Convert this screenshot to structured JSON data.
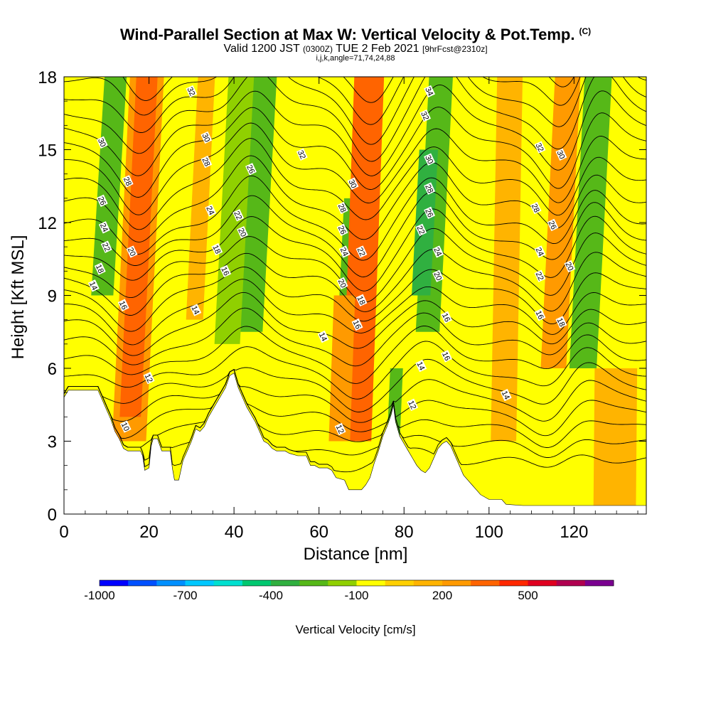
{
  "titles": {
    "main": "Wind-Parallel Section at Max W: Vertical Velocity & Pot.Temp.",
    "main_note": "(C)",
    "valid_prefix": "Valid 1200 JST",
    "valid_utc": "(0300Z)",
    "valid_date": "TUE 2 Feb 2021",
    "forecast": "[9hrFcst@2310z]",
    "params": "i,j,k,angle=71,74,24,88"
  },
  "chart_data": {
    "type": "heatmap",
    "title": "Wind-Parallel Section at Max W: Vertical Velocity & Pot.Temp.",
    "xlabel": "Distance [nm]",
    "ylabel": "Height [Kft MSL]",
    "xlim": [
      0,
      137
    ],
    "ylim": [
      0,
      18
    ],
    "x_ticks": [
      0,
      20,
      40,
      60,
      80,
      100,
      120
    ],
    "y_ticks": [
      0,
      3,
      6,
      9,
      12,
      15,
      18
    ],
    "colorbar": {
      "label": "Vertical Velocity [cm/s]",
      "tick_labels": [
        "-1000",
        "-700",
        "-400",
        "-100",
        "200",
        "500"
      ],
      "tick_values": [
        -1000,
        -700,
        -400,
        -100,
        200,
        500
      ],
      "min": -1000,
      "max": 800,
      "step": 100,
      "colors": [
        "#0000ff",
        "#0050ff",
        "#0090ff",
        "#00c8ff",
        "#00e0d0",
        "#00c870",
        "#30b040",
        "#56b818",
        "#90d000",
        "#ffff00",
        "#ffd000",
        "#ffb400",
        "#ff9a00",
        "#ff6400",
        "#ff2800",
        "#e00020",
        "#b00050",
        "#7a0090"
      ]
    },
    "velocity_bands": [
      {
        "x": 2,
        "w": 3.5,
        "tilt": 0.25,
        "top": 18,
        "bottom": 5.5,
        "value": -100
      },
      {
        "x": 9,
        "w": 2.6,
        "tilt": 0.35,
        "top": 18,
        "bottom": 9,
        "value": -250
      },
      {
        "x": 17,
        "w": 4.0,
        "tilt": 0.28,
        "top": 18,
        "bottom": 3,
        "value": 200
      },
      {
        "x": 17,
        "w": 2.5,
        "tilt": 0.28,
        "top": 18,
        "bottom": 4,
        "value": 300
      },
      {
        "x": 31,
        "w": 2.0,
        "tilt": 0.28,
        "top": 18,
        "bottom": 8,
        "value": 150
      },
      {
        "x": 44,
        "w": 3.2,
        "tilt": 0.32,
        "top": 18,
        "bottom": 7.5,
        "value": -300
      },
      {
        "x": 39,
        "w": 3.0,
        "tilt": 0.3,
        "top": 18,
        "bottom": 7.0,
        "value": -150
      },
      {
        "x": 67,
        "w": 2.2,
        "tilt": 0.28,
        "top": 13,
        "bottom": 8,
        "value": -250
      },
      {
        "x": 70,
        "w": 3.5,
        "tilt": 0.2,
        "top": 18,
        "bottom": 3,
        "value": 300
      },
      {
        "x": 66,
        "w": 2.5,
        "tilt": 0.2,
        "top": 9,
        "bottom": 3,
        "value": 200
      },
      {
        "x": 86,
        "w": 2.8,
        "tilt": 0.3,
        "top": 18,
        "bottom": 7.5,
        "value": -250
      },
      {
        "x": 84,
        "w": 2.2,
        "tilt": 0.3,
        "top": 15,
        "bottom": 9,
        "value": -400
      },
      {
        "x": 79,
        "w": 1.5,
        "tilt": 0.25,
        "top": 6,
        "bottom": 3,
        "value": -300
      },
      {
        "x": 116,
        "w": 3.0,
        "tilt": 0.28,
        "top": 18,
        "bottom": 6,
        "value": 250
      },
      {
        "x": 123,
        "w": 3.2,
        "tilt": 0.3,
        "top": 18,
        "bottom": 6,
        "value": -250
      },
      {
        "x": 104,
        "w": 3.0,
        "tilt": 0.1,
        "top": 18,
        "bottom": 3,
        "value": 100
      },
      {
        "x": 130,
        "w": 5.0,
        "tilt": 0.05,
        "top": 6,
        "bottom": 0,
        "value": 150
      }
    ],
    "theta_contours": {
      "interval": 1,
      "min": 10,
      "max": 35,
      "labeled_values": [
        10,
        12,
        14,
        16,
        18,
        20,
        22,
        24,
        26,
        28,
        30,
        32,
        34
      ]
    },
    "theta_labels": [
      {
        "x": 14.5,
        "y": 3.6,
        "text": "10"
      },
      {
        "x": 20,
        "y": 5.6,
        "text": "12"
      },
      {
        "x": 65,
        "y": 3.5,
        "text": "12"
      },
      {
        "x": 82,
        "y": 4.5,
        "text": "12"
      },
      {
        "x": 31,
        "y": 8.4,
        "text": "14"
      },
      {
        "x": 61,
        "y": 7.3,
        "text": "14"
      },
      {
        "x": 84,
        "y": 6.1,
        "text": "14"
      },
      {
        "x": 104,
        "y": 4.9,
        "text": "14"
      },
      {
        "x": 7,
        "y": 9.4,
        "text": "14"
      },
      {
        "x": 14,
        "y": 8.6,
        "text": "16"
      },
      {
        "x": 38,
        "y": 10.0,
        "text": "16"
      },
      {
        "x": 69,
        "y": 7.8,
        "text": "16"
      },
      {
        "x": 90,
        "y": 6.5,
        "text": "16"
      },
      {
        "x": 90,
        "y": 8.1,
        "text": "16"
      },
      {
        "x": 112,
        "y": 8.2,
        "text": "16"
      },
      {
        "x": 117,
        "y": 7.9,
        "text": "18"
      },
      {
        "x": 36,
        "y": 10.9,
        "text": "18"
      },
      {
        "x": 70,
        "y": 8.8,
        "text": "18"
      },
      {
        "x": 8.5,
        "y": 10.1,
        "text": "18"
      },
      {
        "x": 16,
        "y": 10.8,
        "text": "20"
      },
      {
        "x": 42,
        "y": 11.6,
        "text": "20"
      },
      {
        "x": 65.5,
        "y": 9.5,
        "text": "20"
      },
      {
        "x": 88,
        "y": 9.8,
        "text": "20"
      },
      {
        "x": 119,
        "y": 10.2,
        "text": "20"
      },
      {
        "x": 10,
        "y": 11.0,
        "text": "22"
      },
      {
        "x": 41,
        "y": 12.3,
        "text": "22"
      },
      {
        "x": 70,
        "y": 10.8,
        "text": "22"
      },
      {
        "x": 84,
        "y": 11.7,
        "text": "22"
      },
      {
        "x": 112,
        "y": 9.8,
        "text": "22"
      },
      {
        "x": 9.5,
        "y": 11.8,
        "text": "24"
      },
      {
        "x": 34.5,
        "y": 12.5,
        "text": "24"
      },
      {
        "x": 66,
        "y": 10.8,
        "text": "24"
      },
      {
        "x": 88,
        "y": 10.8,
        "text": "24"
      },
      {
        "x": 112,
        "y": 10.8,
        "text": "24"
      },
      {
        "x": 9,
        "y": 12.9,
        "text": "26"
      },
      {
        "x": 44,
        "y": 14.2,
        "text": "26"
      },
      {
        "x": 65.5,
        "y": 11.7,
        "text": "26"
      },
      {
        "x": 86,
        "y": 12.4,
        "text": "26"
      },
      {
        "x": 115,
        "y": 11.9,
        "text": "26"
      },
      {
        "x": 15,
        "y": 13.7,
        "text": "28"
      },
      {
        "x": 33.5,
        "y": 14.5,
        "text": "28"
      },
      {
        "x": 65.5,
        "y": 12.6,
        "text": "28"
      },
      {
        "x": 86,
        "y": 13.4,
        "text": "28"
      },
      {
        "x": 111,
        "y": 12.6,
        "text": "28"
      },
      {
        "x": 9,
        "y": 15.3,
        "text": "30"
      },
      {
        "x": 33.5,
        "y": 15.5,
        "text": "30"
      },
      {
        "x": 68,
        "y": 13.6,
        "text": "30"
      },
      {
        "x": 86,
        "y": 14.6,
        "text": "30"
      },
      {
        "x": 117,
        "y": 14.8,
        "text": "30"
      },
      {
        "x": 30,
        "y": 17.4,
        "text": "32"
      },
      {
        "x": 56,
        "y": 14.8,
        "text": "32"
      },
      {
        "x": 85,
        "y": 16.4,
        "text": "32"
      },
      {
        "x": 112,
        "y": 15.1,
        "text": "32"
      },
      {
        "x": 86,
        "y": 17.4,
        "text": "34"
      }
    ],
    "terrain": [
      [
        0,
        4.8
      ],
      [
        1,
        5.1
      ],
      [
        4,
        5.1
      ],
      [
        8,
        5.1
      ],
      [
        9,
        4.7
      ],
      [
        10,
        4.3
      ],
      [
        11,
        3.9
      ],
      [
        12,
        3.4
      ],
      [
        13,
        3.1
      ],
      [
        14,
        2.7
      ],
      [
        15,
        2.6
      ],
      [
        18,
        2.6
      ],
      [
        18.5,
        2.4
      ],
      [
        19,
        1.8
      ],
      [
        20,
        1.9
      ],
      [
        20.5,
        2.8
      ],
      [
        21,
        3.1
      ],
      [
        22,
        3.1
      ],
      [
        23,
        2.6
      ],
      [
        24,
        2.6
      ],
      [
        25,
        2.6
      ],
      [
        25.5,
        1.9
      ],
      [
        26,
        1.4
      ],
      [
        27,
        1.4
      ],
      [
        28,
        2.2
      ],
      [
        29,
        2.6
      ],
      [
        30,
        3.0
      ],
      [
        31,
        3.5
      ],
      [
        32,
        3.4
      ],
      [
        33,
        3.6
      ],
      [
        34,
        4.0
      ],
      [
        35,
        4.3
      ],
      [
        36,
        4.6
      ],
      [
        37,
        4.9
      ],
      [
        38,
        5.2
      ],
      [
        39,
        5.7
      ],
      [
        40,
        5.8
      ],
      [
        41,
        5.2
      ],
      [
        42,
        4.8
      ],
      [
        43,
        4.4
      ],
      [
        44,
        4.1
      ],
      [
        45,
        3.8
      ],
      [
        46,
        3.4
      ],
      [
        47,
        3.0
      ],
      [
        48,
        2.9
      ],
      [
        49,
        2.7
      ],
      [
        50,
        2.6
      ],
      [
        52,
        2.6
      ],
      [
        53,
        2.5
      ],
      [
        55,
        2.4
      ],
      [
        57,
        2.4
      ],
      [
        58,
        2.0
      ],
      [
        59,
        2.0
      ],
      [
        60,
        1.9
      ],
      [
        62,
        1.9
      ],
      [
        63,
        1.8
      ],
      [
        64,
        1.5
      ],
      [
        66,
        1.4
      ],
      [
        67,
        1.0
      ],
      [
        70,
        1.0
      ],
      [
        71,
        1.2
      ],
      [
        72,
        1.5
      ],
      [
        73,
        2.1
      ],
      [
        74,
        2.6
      ],
      [
        75,
        3.2
      ],
      [
        76,
        3.6
      ],
      [
        77,
        4.1
      ],
      [
        77.5,
        4.5
      ],
      [
        78,
        3.8
      ],
      [
        79,
        3.2
      ],
      [
        80,
        2.9
      ],
      [
        81,
        2.6
      ],
      [
        82,
        2.3
      ],
      [
        83,
        2.0
      ],
      [
        84,
        1.8
      ],
      [
        85,
        1.7
      ],
      [
        86,
        1.9
      ],
      [
        87,
        2.3
      ],
      [
        88,
        2.7
      ],
      [
        89,
        2.9
      ],
      [
        90,
        3.0
      ],
      [
        91,
        2.8
      ],
      [
        92,
        2.4
      ],
      [
        93,
        2.0
      ],
      [
        94,
        1.6
      ],
      [
        95,
        1.4
      ],
      [
        96,
        1.2
      ],
      [
        97,
        1.0
      ],
      [
        98,
        0.8
      ],
      [
        100,
        0.6
      ],
      [
        103,
        0.6
      ],
      [
        104,
        0.4
      ],
      [
        108,
        0.35
      ],
      [
        122,
        0.35
      ],
      [
        137,
        0.35
      ]
    ],
    "grid": false
  }
}
